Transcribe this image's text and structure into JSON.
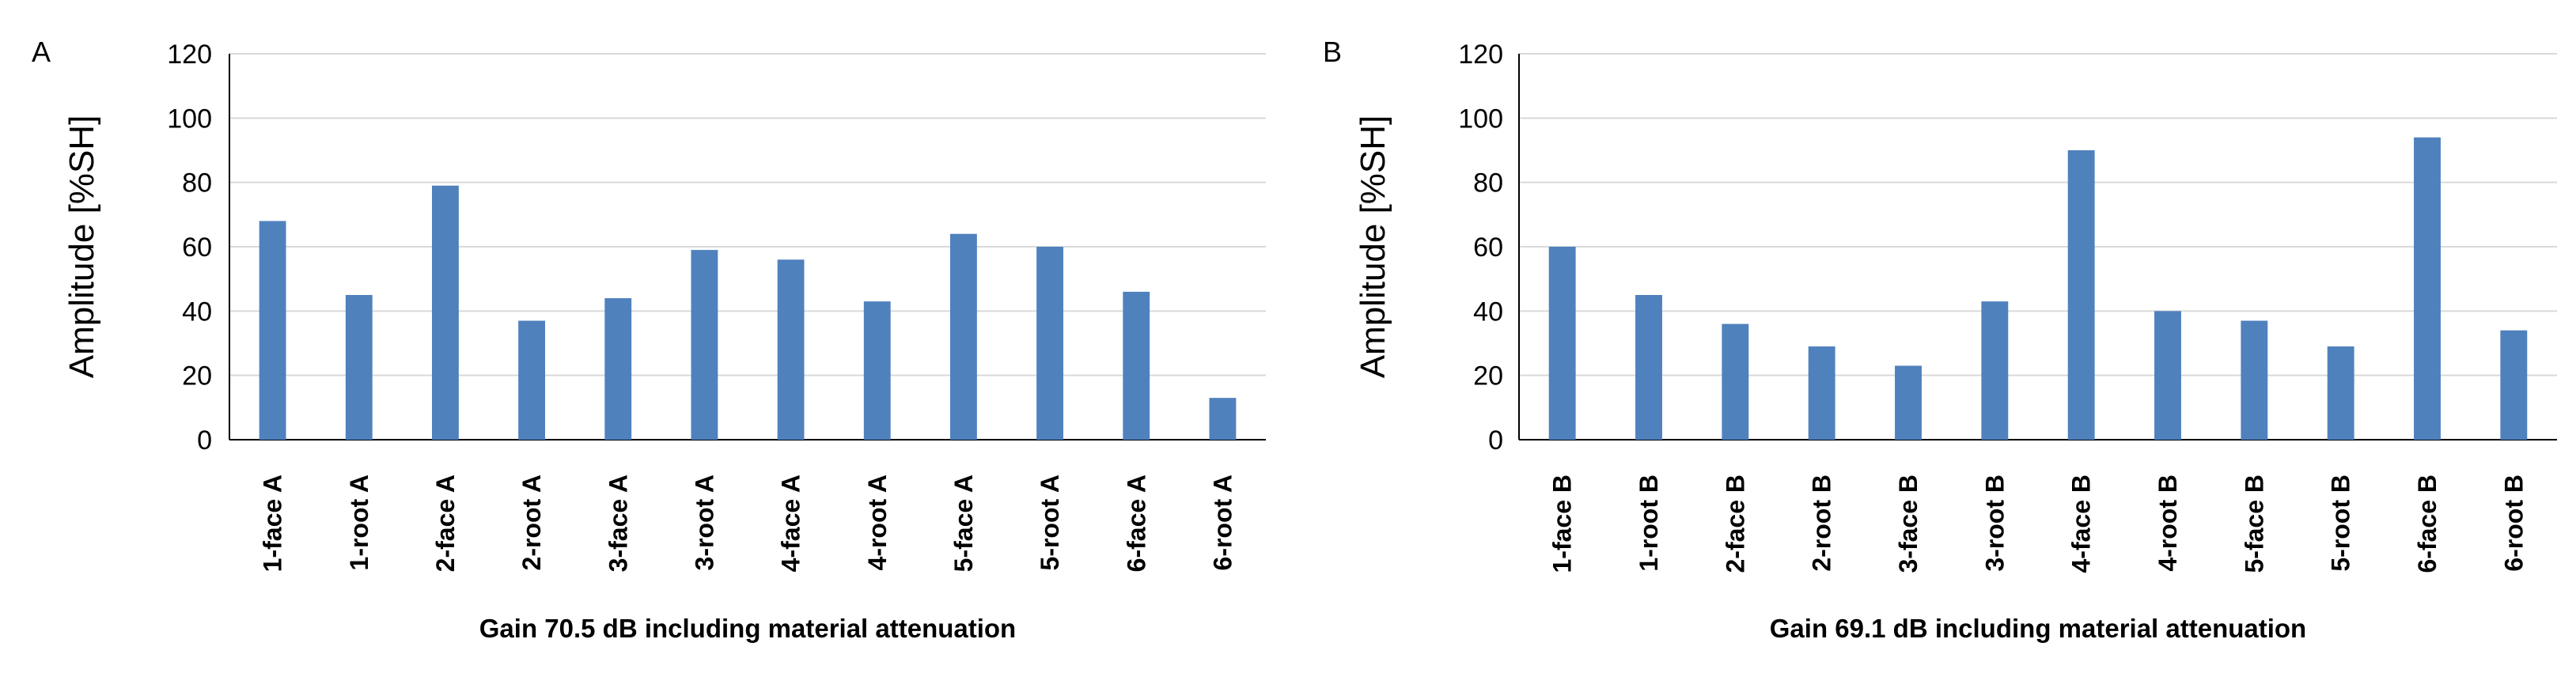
{
  "chart_data": [
    {
      "type": "bar",
      "panel_label": "A",
      "ylabel": "Amplitude [%SH]",
      "xlabel": "Gain 70.5 dB including material attenuation",
      "ylim": [
        0,
        120
      ],
      "yticks": [
        "0",
        "20",
        "40",
        "60",
        "80",
        "100",
        "120"
      ],
      "grid": true,
      "bar_color": "#4f81bd",
      "categories": [
        "1-face A",
        "1-root A",
        "2-face A",
        "2-root A",
        "3-face A",
        "3-root A",
        "4-face A",
        "4-root A",
        "5-face A",
        "5-root A",
        "6-face A",
        "6-root A"
      ],
      "values": [
        68,
        45,
        79,
        37,
        44,
        59,
        56,
        43,
        64,
        60,
        46,
        13
      ]
    },
    {
      "type": "bar",
      "panel_label": "B",
      "ylabel": "Amplitude [%SH]",
      "xlabel": "Gain 69.1 dB including material attenuation",
      "ylim": [
        0,
        120
      ],
      "yticks": [
        "0",
        "20",
        "40",
        "60",
        "80",
        "100",
        "120"
      ],
      "grid": true,
      "bar_color": "#4f81bd",
      "categories": [
        "1-face B",
        "1-root B",
        "2-face B",
        "2-root B",
        "3-face B",
        "3-root B",
        "4-face B",
        "4-root B",
        "5-face B",
        "5-root B",
        "6-face B",
        "6-root B"
      ],
      "values": [
        60,
        45,
        36,
        29,
        23,
        43,
        90,
        40,
        37,
        29,
        94,
        34
      ]
    }
  ]
}
